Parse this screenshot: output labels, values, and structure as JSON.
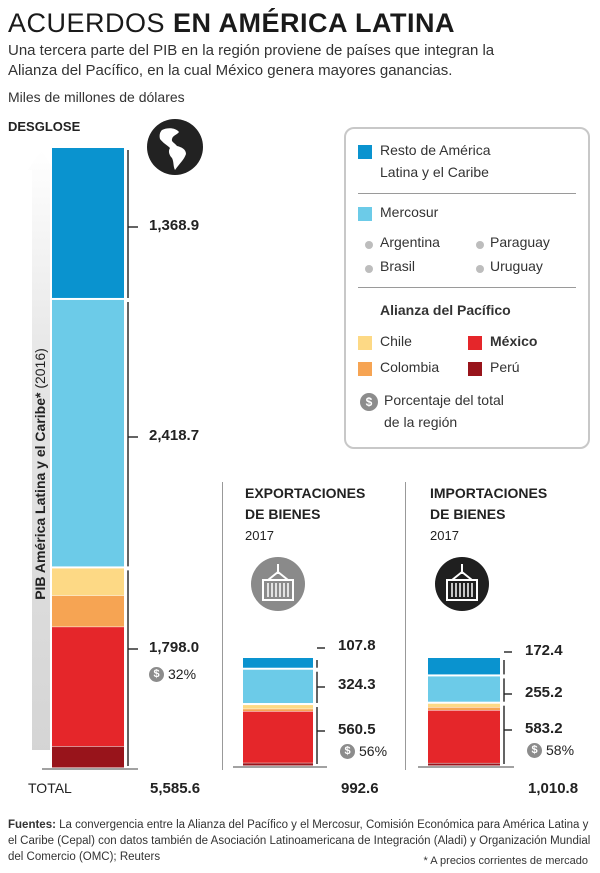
{
  "header": {
    "title_light": "ACUERDOS ",
    "title_bold": "EN AMÉRICA LATINA",
    "subtitle_line1": "Una tercera parte del PIB en la región proviene de países que integran la",
    "subtitle_line2": "Alianza del Pacífico, en la cual México genera mayores ganancias.",
    "units": "Miles de millones de dólares",
    "desglose": "DESGLOSE"
  },
  "axis_label_bold": "PIB América Latina y el Caribe*",
  "axis_label_rest": " (2016)",
  "legend": {
    "resto": "Resto de América Latina y el Caribe",
    "resto_line1": "Resto de América",
    "resto_line2": "Latina y el Caribe",
    "mercosur": "Mercosur",
    "mercosur_countries": [
      "Argentina",
      "Paraguay",
      "Brasil",
      "Uruguay"
    ],
    "alianza_title": "Alianza del Pacífico",
    "chile": "Chile",
    "mexico": "México",
    "colombia": "Colombia",
    "peru": "Perú",
    "pct_line1": "Porcentaje del total",
    "pct_line2": "de la región",
    "dollar_symbol": "$"
  },
  "colors": {
    "resto": "#0a93cf",
    "mercosur": "#6ccbe8",
    "chile": "#fdd985",
    "colombia": "#f6a453",
    "mexico": "#e5262a",
    "peru": "#98141b"
  },
  "chart_data": [
    {
      "type": "bar",
      "title": "PIB América Latina y el Caribe* (2016)",
      "ylabel": "Miles de millones de dólares",
      "stacked": true,
      "segments": [
        {
          "name": "Resto de América Latina y el Caribe",
          "value": 1368.9,
          "label": "1,368.9"
        },
        {
          "name": "Mercosur",
          "value": 2418.7,
          "label": "2,418.7"
        },
        {
          "name": "Alianza del Pacífico",
          "value": 1798.0,
          "label": "1,798.0",
          "pct": "32%",
          "breakdown": [
            {
              "name": "Chile",
              "value": 247
            },
            {
              "name": "Colombia",
              "value": 282
            },
            {
              "name": "México",
              "value": 1077
            },
            {
              "name": "Perú",
              "value": 192
            }
          ]
        }
      ],
      "total_label": "TOTAL",
      "total": "5,585.6"
    },
    {
      "type": "bar",
      "title_line1": "EXPORTACIONES",
      "title_line2": "DE BIENES",
      "year": "2017",
      "stacked": true,
      "segments": [
        {
          "name": "Resto de América Latina y el Caribe",
          "value": 107.8,
          "label": "107.8"
        },
        {
          "name": "Mercosur",
          "value": 324.3,
          "label": "324.3"
        },
        {
          "name": "Alianza del Pacífico",
          "value": 560.5,
          "label": "560.5",
          "pct": "56%",
          "breakdown": [
            {
              "name": "Chile",
              "value": 38
            },
            {
              "name": "Colombia",
              "value": 22
            },
            {
              "name": "México",
              "value": 475
            },
            {
              "name": "Perú",
              "value": 25
            }
          ]
        }
      ],
      "total": "992.6"
    },
    {
      "type": "bar",
      "title_line1": "IMPORTACIONES",
      "title_line2": "DE BIENES",
      "year": "2017",
      "stacked": true,
      "segments": [
        {
          "name": "Resto de América Latina y el Caribe",
          "value": 172.4,
          "label": "172.4"
        },
        {
          "name": "Mercosur",
          "value": 255.2,
          "label": "255.2"
        },
        {
          "name": "Alianza del Pacífico",
          "value": 583.2,
          "label": "583.2",
          "pct": "58%",
          "breakdown": [
            {
              "name": "Chile",
              "value": 36
            },
            {
              "name": "Colombia",
              "value": 28
            },
            {
              "name": "México",
              "value": 495
            },
            {
              "name": "Perú",
              "value": 24
            }
          ]
        }
      ],
      "total": "1,010.8"
    }
  ],
  "footer": {
    "sources_label": "Fuentes:",
    "sources_text": " La convergencia entre la Alianza del Pacífico y el Mercosur, Comisión Económica para América Latina y el Caribe (Cepal) con datos también de Asociación Latinoamericana de Integración (Aladi) y Organización Mundial del Comercio (OMC); Reuters",
    "footnote": "* A precios corrientes de mercado"
  }
}
